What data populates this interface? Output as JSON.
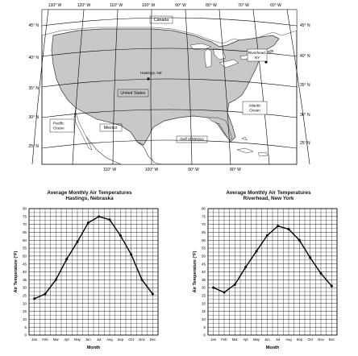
{
  "map": {
    "top_lon_labels": [
      "130° W",
      "120° W",
      "110° W",
      "100° W",
      "90° W",
      "80° W",
      "70° W",
      "60° W"
    ],
    "bottom_lon_labels": [
      "110° W",
      "100° W",
      "90° W",
      "80° W"
    ],
    "left_lat_labels": [
      "45° N",
      "40° N",
      "35° N",
      "30° N",
      "25° N"
    ],
    "right_lat_labels": [
      "45° N",
      "40° N",
      "35° N",
      "30° N",
      "25° N"
    ],
    "place_labels": {
      "canada": "Canada",
      "united_states": "United States",
      "mexico": "Mexico",
      "gulf": "Gulf of Mexico",
      "pacific": "Pacific Ocean",
      "atlantic": "Atlantic Ocean",
      "hastings": "Hastings, NE",
      "riverhead": "Riverhead, NY"
    }
  },
  "chart_data": [
    {
      "type": "line",
      "title": "Average Monthly Air Temperatures",
      "subtitle": "Hastings, Nebraska",
      "xlabel": "Month",
      "ylabel": "Air Temperature (°F)",
      "categories": [
        "Jan",
        "Feb",
        "Mar",
        "Apr",
        "May",
        "Jun",
        "Jul",
        "Aug",
        "Sep",
        "Oct",
        "Nov",
        "Dec"
      ],
      "values": [
        23,
        26,
        35,
        48,
        59,
        71,
        75,
        73,
        63,
        51,
        35,
        26
      ],
      "ylim": [
        0,
        80
      ],
      "yticks": [
        0,
        5,
        10,
        15,
        20,
        25,
        30,
        35,
        40,
        45,
        50,
        55,
        60,
        65,
        70,
        75,
        80
      ],
      "grid": true
    },
    {
      "type": "line",
      "title": "Average Monthly Air Temperatures",
      "subtitle": "Riverhead, New York",
      "xlabel": "Month",
      "ylabel": "Air Temperature (°F)",
      "categories": [
        "Jan",
        "Feb",
        "Mar",
        "Apr",
        "May",
        "Jun",
        "Jul",
        "Aug",
        "Sep",
        "Oct",
        "Nov",
        "Dec"
      ],
      "values": [
        30,
        27,
        32,
        43,
        53,
        63,
        69,
        67,
        60,
        49,
        39,
        31
      ],
      "ylim": [
        0,
        80
      ],
      "yticks": [
        0,
        5,
        10,
        15,
        20,
        25,
        30,
        35,
        40,
        45,
        50,
        55,
        60,
        65,
        70,
        75,
        80
      ],
      "grid": true
    }
  ]
}
